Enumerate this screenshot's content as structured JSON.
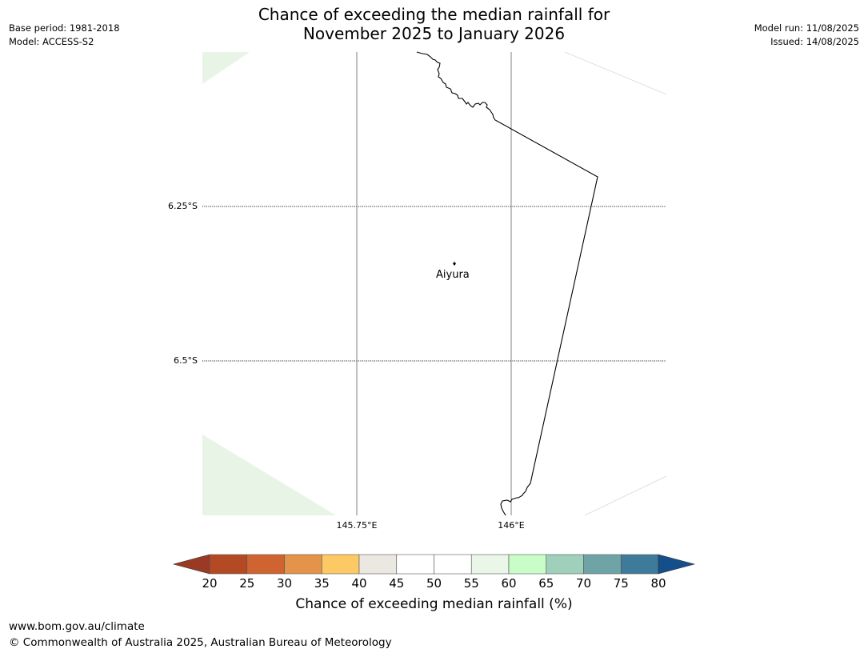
{
  "title": {
    "line1": "Chance of exceeding the median rainfall for",
    "line2": "November 2025 to January 2026"
  },
  "meta_left": {
    "base_period": "Base period: 1981-2018",
    "model": "Model: ACCESS-S2"
  },
  "meta_right": {
    "model_run": "Model run: 11/08/2025",
    "issued": "Issued: 14/08/2025"
  },
  "map": {
    "latitude_labels": [
      "6.25°S",
      "6.5°S"
    ],
    "longitude_labels": [
      "145.75°E",
      "146°E"
    ],
    "place": {
      "name": "Aiyura"
    },
    "fill_color": "#e8f4e6"
  },
  "colorbar": {
    "ticks": [
      "20",
      "25",
      "30",
      "35",
      "40",
      "45",
      "50",
      "55",
      "60",
      "65",
      "70",
      "75",
      "80"
    ],
    "colors": [
      "#9a3a24",
      "#b34a24",
      "#cf6431",
      "#e3944a",
      "#fdc965",
      "#ebe8e2",
      "#ffffff",
      "#ffffff",
      "#e9f6e8",
      "#c8fdc8",
      "#9fd0bb",
      "#6fa4a6",
      "#3e7a9a",
      "#144e8b"
    ],
    "label": "Chance of exceeding median rainfall (%)"
  },
  "footer": {
    "url": "www.bom.gov.au/climate",
    "copyright": "© Commonwealth of Australia 2025, Australian Bureau of Meteorology"
  }
}
